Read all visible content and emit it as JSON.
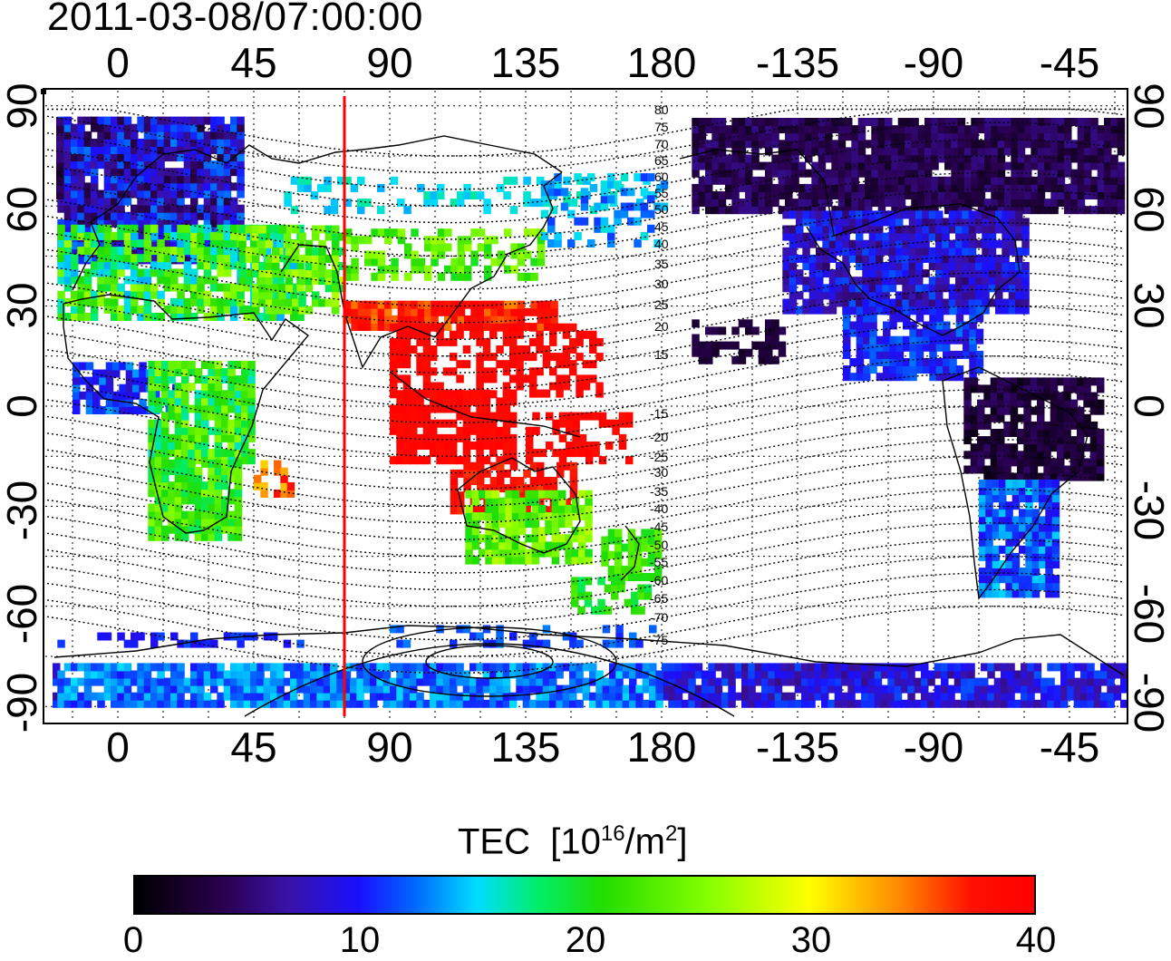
{
  "title": "2011-03-08/07:00:00",
  "x_ticks": [
    "0",
    "45",
    "90",
    "135",
    "180",
    "-135",
    "-90",
    "-45"
  ],
  "y_ticks": [
    "90",
    "60",
    "30",
    "0",
    "-30",
    "-60",
    "-90"
  ],
  "contour_labels": [
    "80",
    "75",
    "70",
    "65",
    "60",
    "55",
    "50",
    "45",
    "40",
    "35",
    "30",
    "25",
    "20",
    "15",
    "15",
    "20",
    "25",
    "30",
    "35",
    "40",
    "45",
    "50",
    "55",
    "60",
    "65",
    "70",
    "75"
  ],
  "colorbar": {
    "label": "TEC",
    "unit_base": "[10",
    "unit_exp": "16",
    "unit_mid": "/m",
    "unit_sup": "2",
    "unit_end": "]",
    "ticks": [
      "0",
      "10",
      "20",
      "30",
      "40"
    ],
    "range": [
      0,
      40
    ]
  },
  "terminator_longitude": 75,
  "colors": {
    "terminator": "#ff0000",
    "tec_low": "#2a0050",
    "tec_mid": "#00ee66",
    "tec_high": "#ff0000"
  }
}
